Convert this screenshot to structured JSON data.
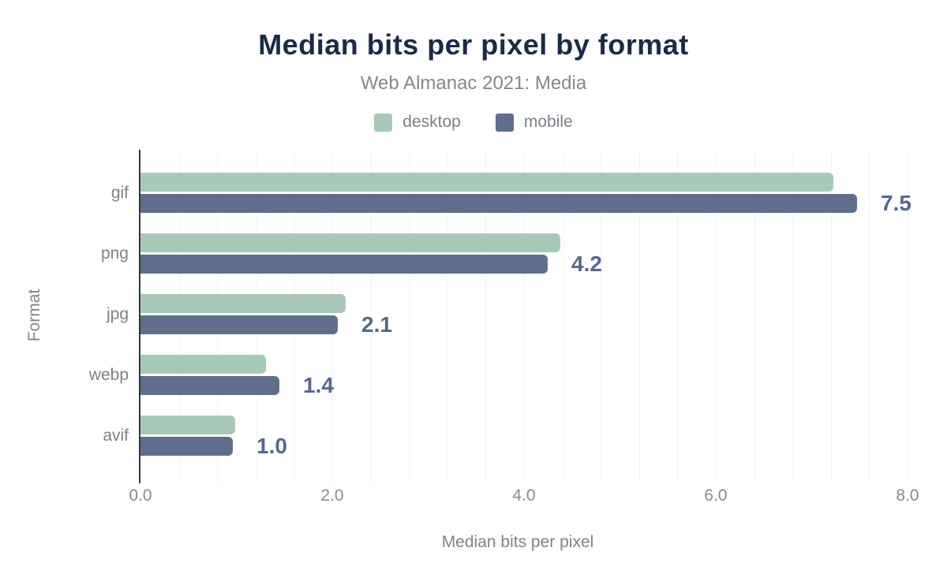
{
  "chart_data": {
    "type": "bar",
    "orientation": "horizontal",
    "title": "Median bits per pixel by format",
    "subtitle": "Web Almanac 2021: Media",
    "categories": [
      "gif",
      "png",
      "jpg",
      "webp",
      "avif"
    ],
    "series": [
      {
        "name": "desktop",
        "color": "#a7c9b8",
        "values": [
          7.23,
          4.38,
          2.14,
          1.31,
          0.99
        ]
      },
      {
        "name": "mobile",
        "color": "#5f6e8c",
        "values": [
          7.47,
          4.25,
          2.06,
          1.45,
          0.96
        ]
      }
    ],
    "bar_labels": [
      "7.5",
      "4.2",
      "2.1",
      "1.4",
      "1.0"
    ],
    "bar_labels_series": "mobile",
    "xlabel": "Median bits per pixel",
    "ylabel": "Format",
    "xlim": [
      0,
      8
    ],
    "xticks": [
      "0.0",
      "2.0",
      "4.0",
      "6.0",
      "8.0"
    ],
    "grid": {
      "minor_step": 0.4,
      "on": true
    },
    "legend_position": "top",
    "colors": {
      "title": "#1a2b49",
      "subtitle": "#82878f",
      "legend_text": "#7a808a",
      "category_text": "#7b8189",
      "tick_text": "#868b94",
      "axis_title_text": "#7d828b",
      "value_label": "#56688e",
      "grid_line": "#f2f3f4",
      "axis_line": "#33373d",
      "background": "#ffffff"
    }
  }
}
